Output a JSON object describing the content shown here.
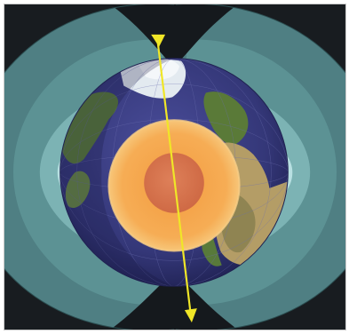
{
  "figure": {
    "subject": "earth-magnetic-field-and-core",
    "colors": {
      "background_dark": "#161a1e",
      "field_outer": "#4d7f82",
      "field_mid": "#5d9597",
      "field_inner": "#8fc3c4",
      "field_core_glow": "#c9e8ea",
      "ocean": "#3c3f86",
      "ocean_dark": "#2a2c63",
      "land": "#5a7a38",
      "land_light": "#b79f6a",
      "ice": "#dfe7ee",
      "outer_core": "#f6a94f",
      "outer_core_edge": "#f5c071",
      "inner_core": "#d7744d",
      "axis": "#f0e627"
    },
    "icons": {
      "axis_arrow_top": "arrow-down-icon",
      "axis_arrow_bottom": "arrow-down-icon"
    }
  }
}
